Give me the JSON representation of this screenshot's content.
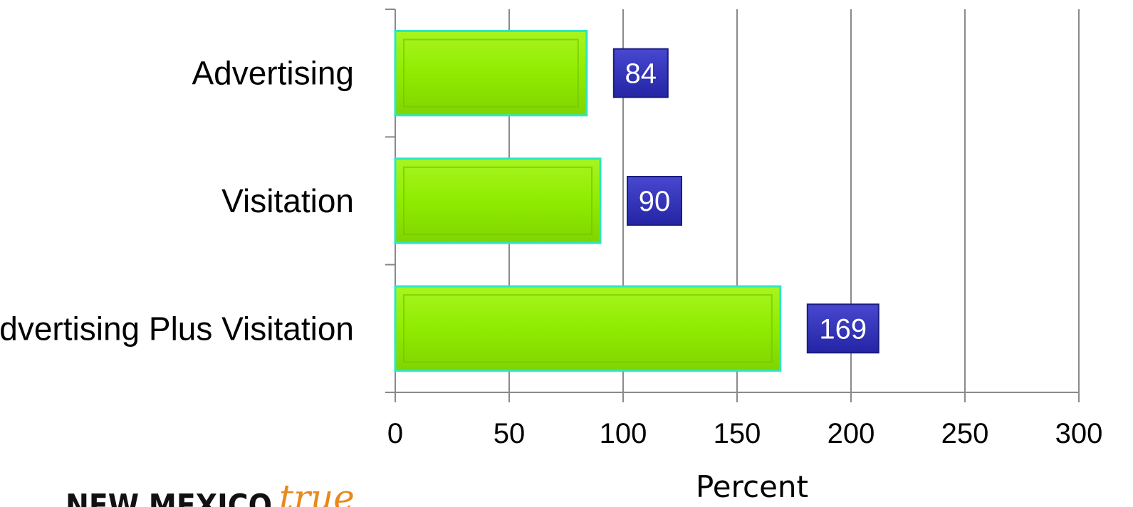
{
  "chart_data": {
    "type": "bar",
    "orientation": "horizontal",
    "categories": [
      "Advertising",
      "Visitation",
      "Advertising Plus Visitation"
    ],
    "values": [
      84,
      90,
      169
    ],
    "data_labels": [
      "84",
      "90",
      "169"
    ],
    "xlabel": "Percent",
    "ylabel": "",
    "xlim": [
      0,
      300
    ],
    "xticks": [
      0,
      50,
      100,
      150,
      200,
      250,
      300
    ],
    "xtick_labels": [
      "0",
      "50",
      "100",
      "150",
      "200",
      "250",
      "300"
    ],
    "grid": "vertical",
    "legend": "none",
    "colors": {
      "bar_fill": "#8fec00",
      "bar_border": "#2ee6c0",
      "label_box": "#3030b8",
      "grid": "#8a8a8a"
    }
  },
  "logo": {
    "text_main": "NEW MEXICO",
    "text_script": "true",
    "colors": {
      "main": "#111111",
      "script": "#e8891c"
    }
  }
}
